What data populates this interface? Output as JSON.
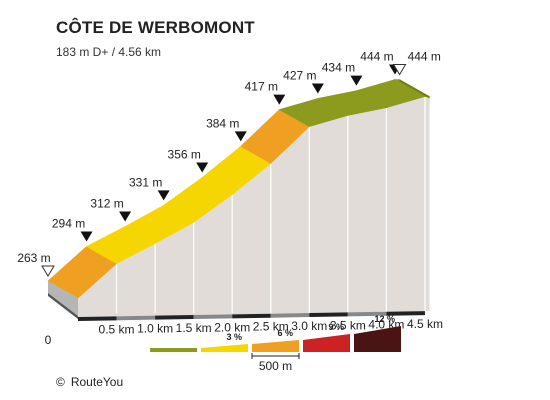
{
  "header": {
    "title": "CÔTE DE WERBOMONT",
    "subtitle": "183 m D+ / 4.56 km"
  },
  "footer": {
    "copyright_symbol": "©",
    "credit": "RouteYou"
  },
  "legend": {
    "scale_label": "500 m",
    "items": [
      {
        "label": "",
        "color": "#8c9a1e"
      },
      {
        "label": "3 %",
        "color": "#f5d600"
      },
      {
        "label": "6 %",
        "color": "#f0a020"
      },
      {
        "label": "9 %",
        "color": "#cc2222"
      },
      {
        "label": "12 %",
        "color": "#4a1414"
      }
    ]
  },
  "chart_data": {
    "type": "area",
    "xlabel": "",
    "ylabel": "",
    "x_ticks": [
      "0",
      "0.5 km",
      "1.0 km",
      "1.5 km",
      "2.0 km",
      "2.5 km",
      "3.0 km",
      "3.5 km",
      "4.0 km",
      "4.5 km"
    ],
    "x_tick_values": [
      0,
      0.5,
      1.0,
      1.5,
      2.0,
      2.5,
      3.0,
      3.5,
      4.0,
      4.5
    ],
    "points": [
      {
        "x": 0,
        "y": 263,
        "label": "263 m",
        "marker": "open"
      },
      {
        "x": 0.5,
        "y": 294,
        "label": "294 m",
        "marker": "filled"
      },
      {
        "x": 1.0,
        "y": 312,
        "label": "312 m",
        "marker": "filled"
      },
      {
        "x": 1.5,
        "y": 331,
        "label": "331 m",
        "marker": "filled"
      },
      {
        "x": 2.0,
        "y": 356,
        "label": "356 m",
        "marker": "filled"
      },
      {
        "x": 2.5,
        "y": 384,
        "label": "384 m",
        "marker": "filled"
      },
      {
        "x": 3.0,
        "y": 417,
        "label": "417 m",
        "marker": "filled"
      },
      {
        "x": 3.5,
        "y": 427,
        "label": "427 m",
        "marker": "filled"
      },
      {
        "x": 4.0,
        "y": 434,
        "label": "434 m",
        "marker": "filled"
      },
      {
        "x": 4.5,
        "y": 444,
        "label": "444 m",
        "marker": "filled"
      },
      {
        "x": 4.56,
        "y": 444,
        "label": "444 m",
        "marker": "open"
      }
    ],
    "segment_colors": [
      "#f0a020",
      "#f5d600",
      "#f5d600",
      "#f5d600",
      "#f5d600",
      "#f0a020",
      "#8c9a1e",
      "#8c9a1e",
      "#8c9a1e",
      "#8c9a1e"
    ],
    "colors": {
      "side_wall": "#e2dcd8",
      "base": "#b5b5b5",
      "ruler": "#222222",
      "divider": "#ffffff"
    }
  }
}
